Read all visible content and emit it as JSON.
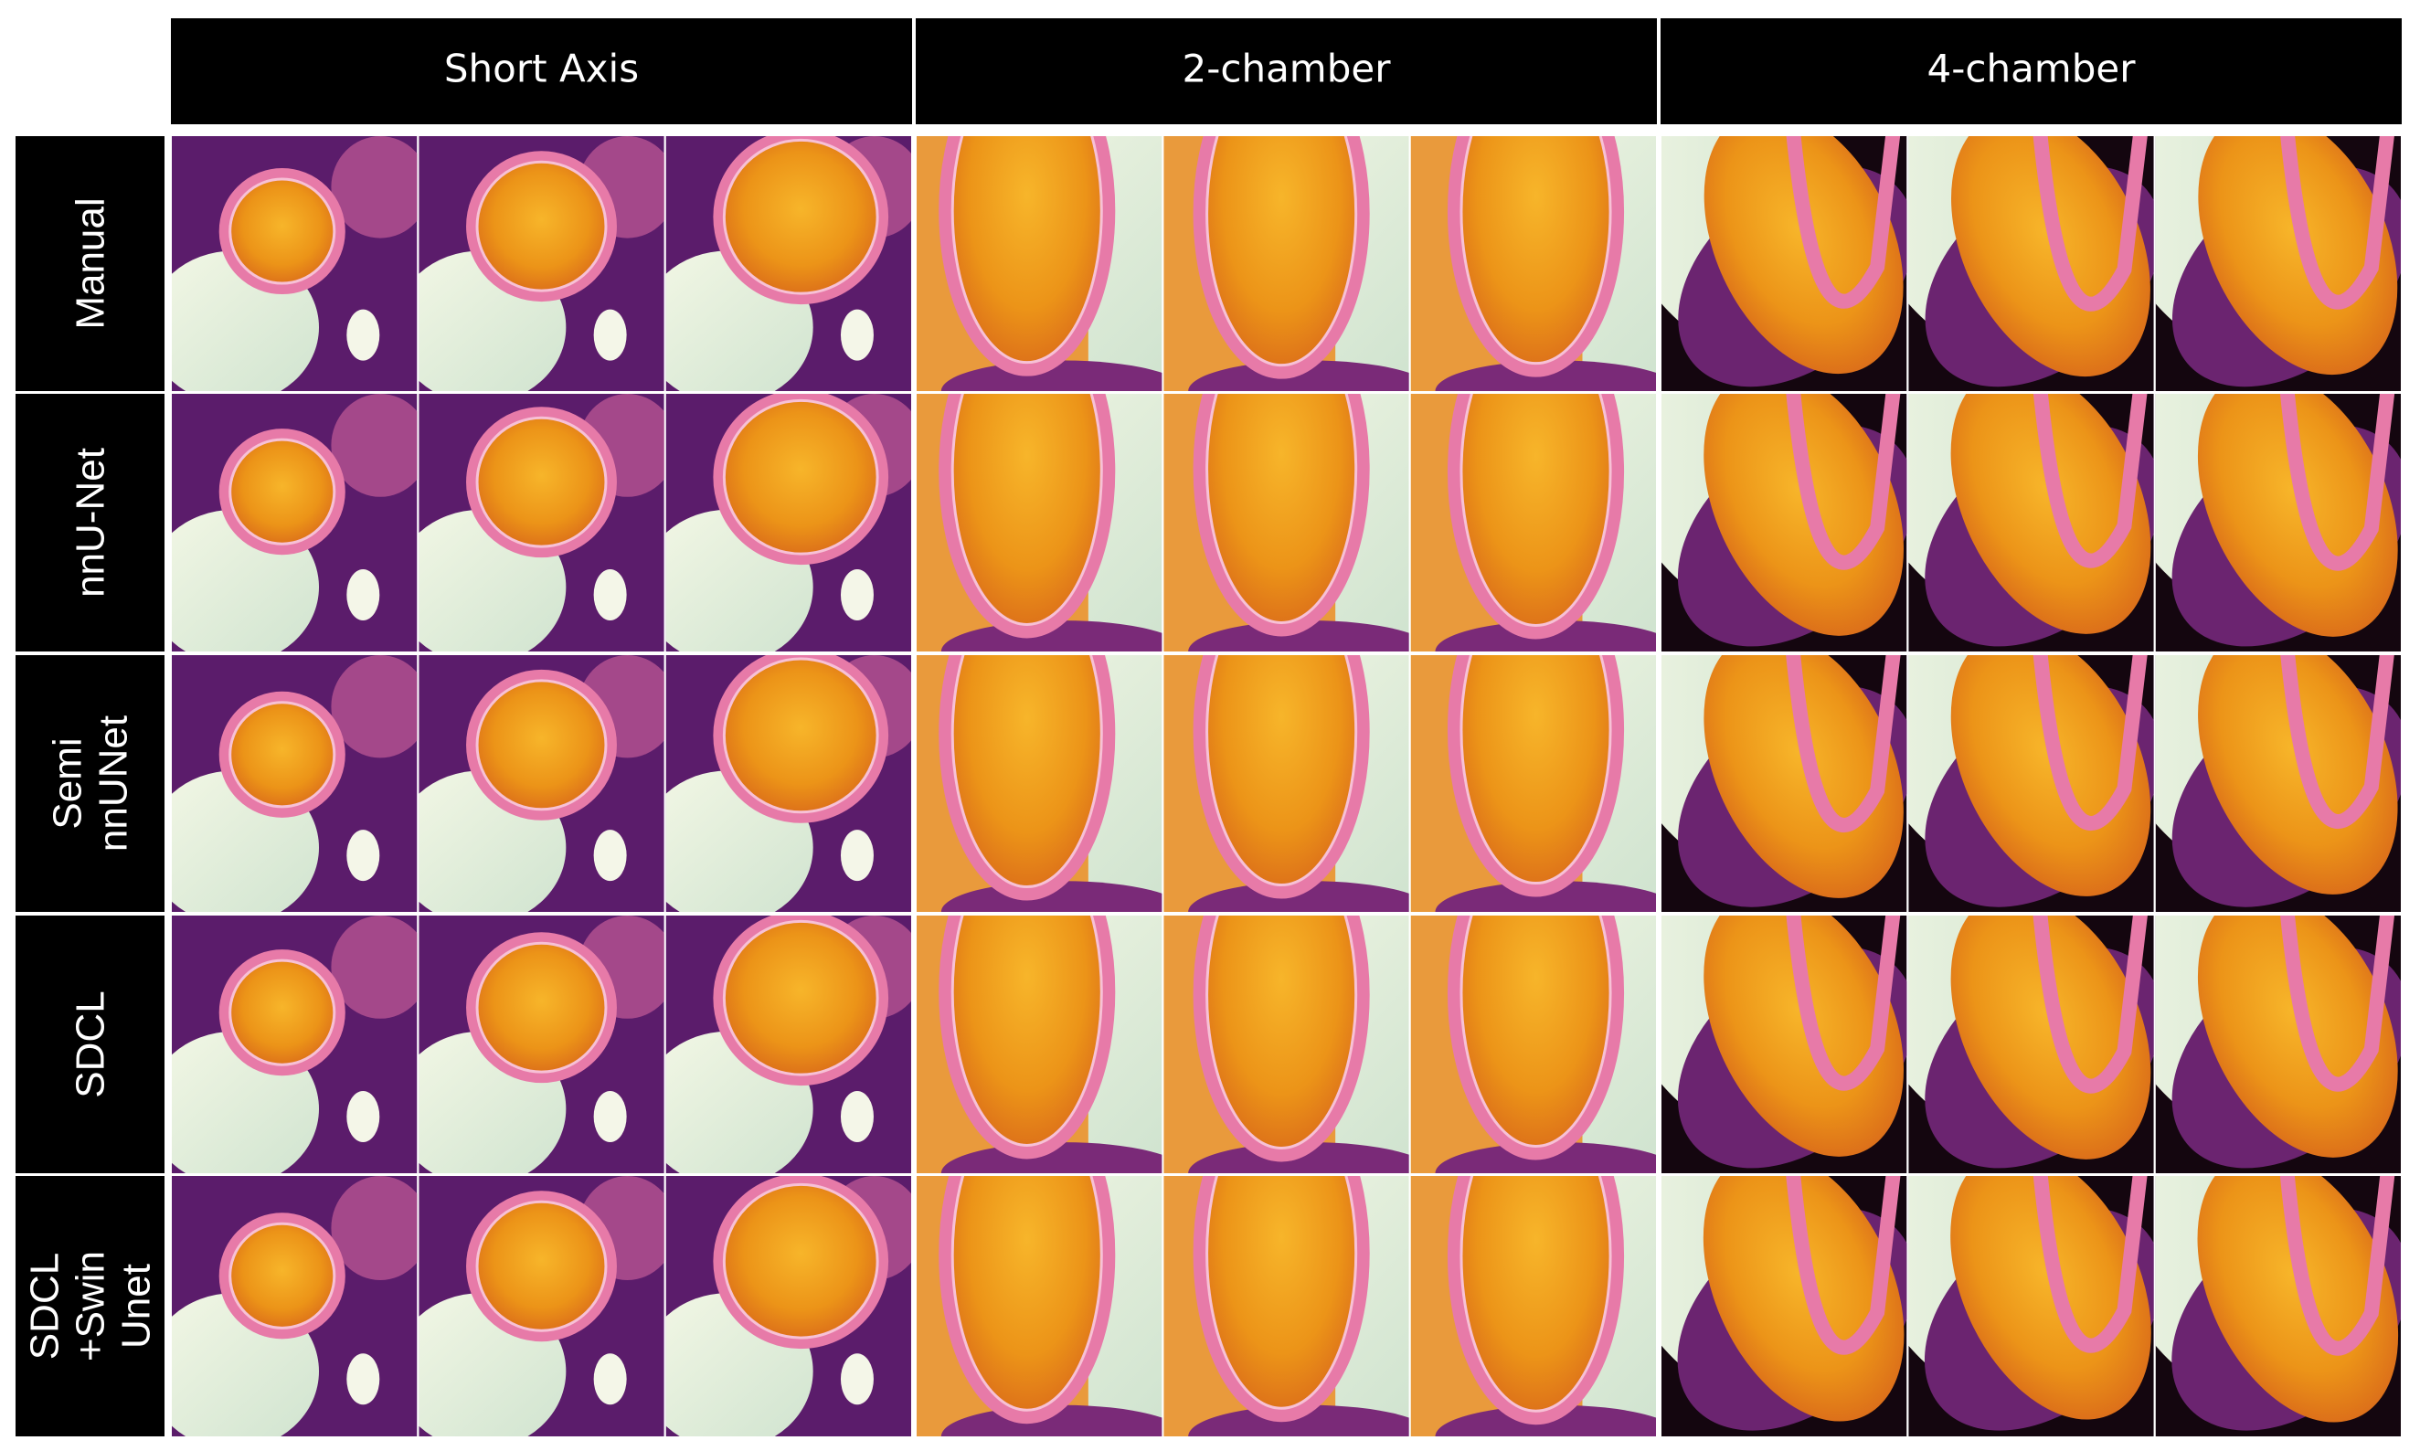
{
  "header": {
    "columns": [
      "Short Axis",
      "2-chamber",
      "4-chamber"
    ]
  },
  "rows": [
    [
      "Manual"
    ],
    [
      "nnU-Net"
    ],
    [
      "Semi",
      "nnUNet"
    ],
    [
      "SDCL"
    ],
    [
      "SDCL",
      "+Swin",
      "Unet"
    ]
  ]
}
